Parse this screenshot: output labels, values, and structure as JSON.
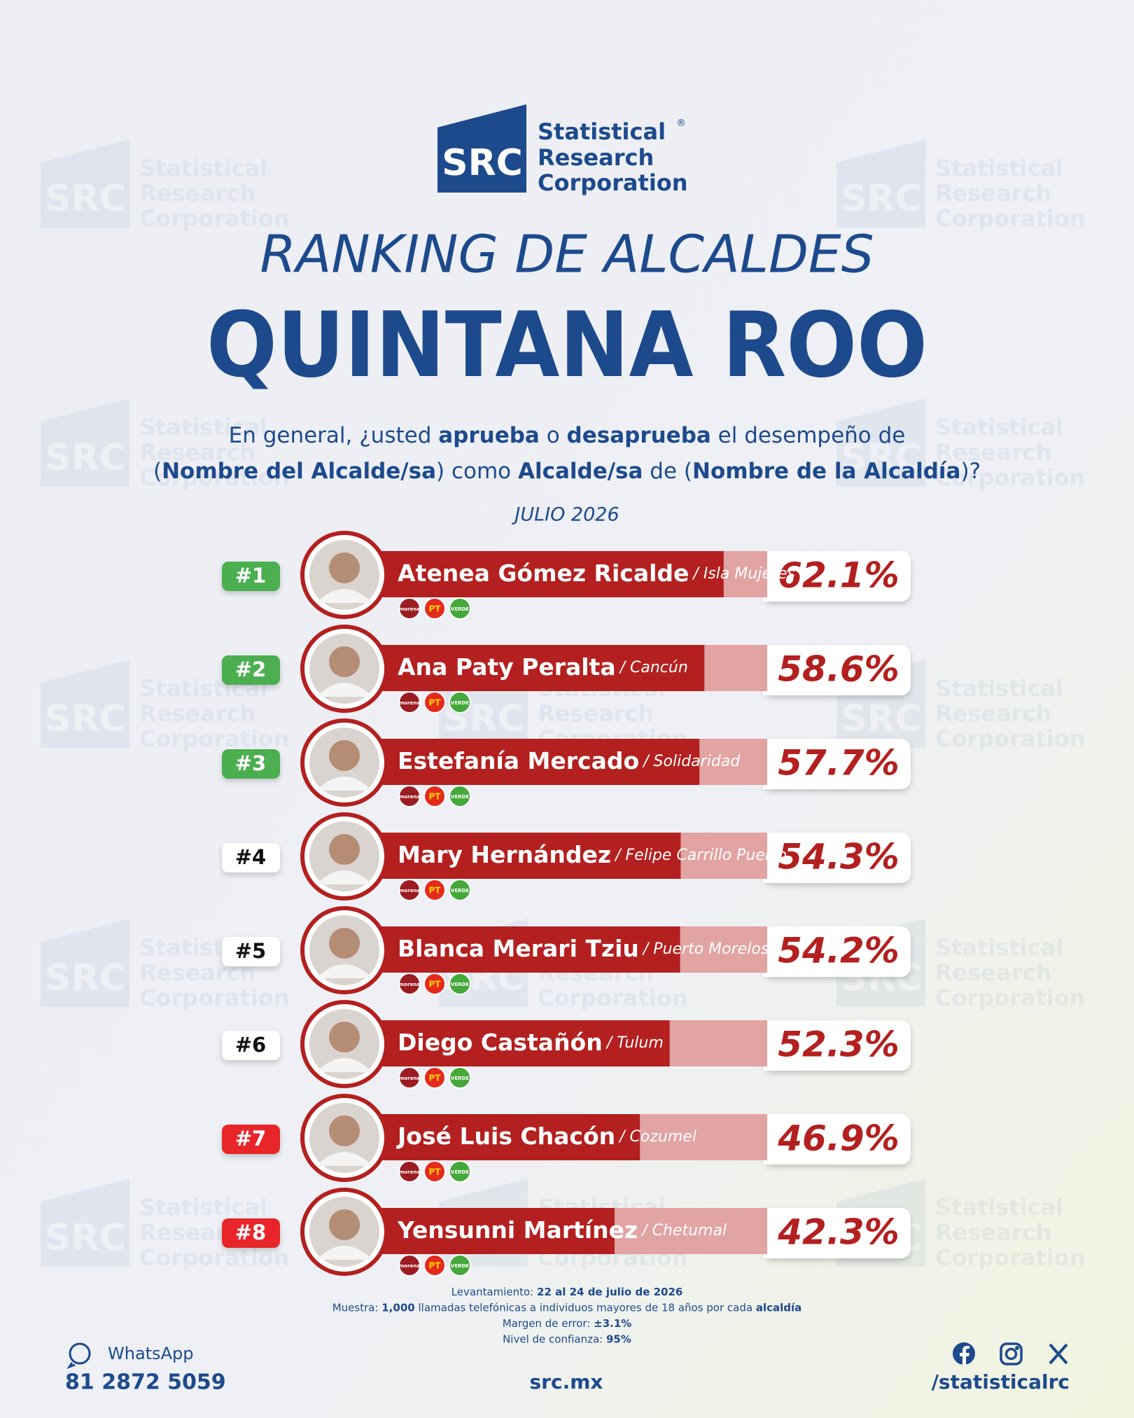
{
  "logo": {
    "mark": "SRC",
    "lines": [
      "Statistical",
      "Research",
      "Corporation"
    ],
    "registered": "®"
  },
  "header": {
    "title": "RANKING DE ALCALDES",
    "region": "QUINTANA ROO",
    "question": [
      [
        {
          "text": "En general, ¿usted ",
          "bold": false
        },
        {
          "text": "aprueba",
          "bold": true
        },
        {
          "text": " o ",
          "bold": false
        },
        {
          "text": "desaprueba",
          "bold": true
        },
        {
          "text": " el desempeño de",
          "bold": false
        }
      ],
      [
        {
          "text": "(",
          "bold": false
        },
        {
          "text": "Nombre del Alcalde/sa",
          "bold": true
        },
        {
          "text": ") como ",
          "bold": false
        },
        {
          "text": "Alcalde/sa",
          "bold": true
        },
        {
          "text": " de (",
          "bold": false
        },
        {
          "text": "Nombre de la Alcaldía",
          "bold": true
        },
        {
          "text": ")?",
          "bold": false
        }
      ]
    ],
    "date": "JULIO 2026"
  },
  "chart_data": {
    "type": "bar",
    "orientation": "horizontal",
    "categories": [
      "Atenea Gómez Ricalde",
      "Ana Paty Peralta",
      "Estefanía Mercado",
      "Mary Hernández",
      "Blanca Merari Tziu",
      "Diego Castañón",
      "José Luis Chacón",
      "Yensunni Martínez"
    ],
    "locations": [
      "/ Isla Mujeres",
      "/ Cancún",
      "/ Solidaridad",
      "/ Felipe Carrillo Puerto",
      "/ Puerto Morelos",
      "/ Tulum",
      "/ Cozumel",
      "/ Chetumal"
    ],
    "ranks": [
      "#1",
      "#2",
      "#3",
      "#4",
      "#5",
      "#6",
      "#7",
      "#8"
    ],
    "rank_colors": [
      "#4cae4f",
      "#4cae4f",
      "#4cae4f",
      "#ffffff",
      "#ffffff",
      "#ffffff",
      "#e8262a",
      "#e8262a"
    ],
    "values": [
      62.1,
      58.6,
      57.7,
      54.3,
      54.2,
      52.3,
      46.9,
      42.3
    ],
    "value_labels": [
      "62.1%",
      "58.6%",
      "57.7%",
      "54.3%",
      "54.2%",
      "52.3%",
      "46.9%",
      "42.3%"
    ],
    "color": "#b3201f",
    "track_color": "#e2a3a3",
    "xlim": [
      0,
      70
    ],
    "parties": [
      {
        "label": "morena",
        "color": "#9b1c22"
      },
      {
        "label": "PT",
        "color": "#e42a1d"
      },
      {
        "label": "VERDE",
        "color": "#45a83a"
      }
    ]
  },
  "methodology": [
    [
      {
        "text": "Levantamiento: ",
        "bold": false
      },
      {
        "text": "22 al 24 de julio de 2026",
        "bold": true
      }
    ],
    [
      {
        "text": "Muestra: ",
        "bold": false
      },
      {
        "text": "1,000",
        "bold": true
      },
      {
        "text": " llamadas telefónicas a individuos mayores de 18 años por cada ",
        "bold": false
      },
      {
        "text": "alcaldía",
        "bold": true
      }
    ],
    [
      {
        "text": "Margen de error: ",
        "bold": false
      },
      {
        "text": "±3.1%",
        "bold": true
      }
    ],
    [
      {
        "text": "Nivel de confianza: ",
        "bold": false
      },
      {
        "text": "95%",
        "bold": true
      }
    ]
  ],
  "footer": {
    "whatsapp_label": "WhatsApp",
    "phone": "81 2872 5059",
    "website": "src.mx",
    "social_handle": "/statisticalrc"
  }
}
